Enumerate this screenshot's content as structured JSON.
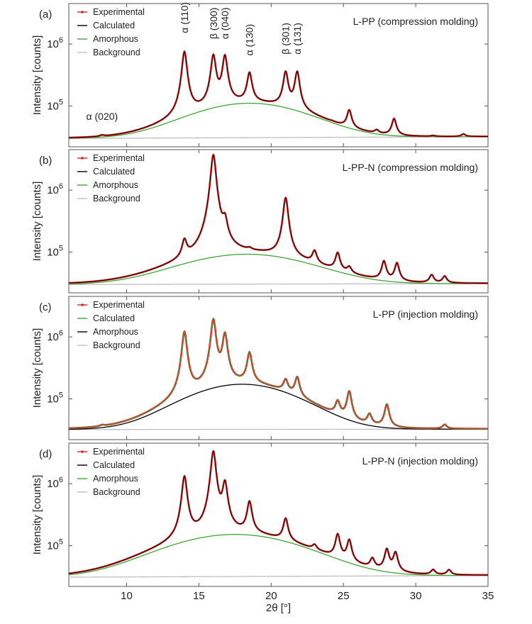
{
  "chart_data": [
    {
      "type": "line",
      "panel_letter": "(a)",
      "sample_label": "L-PP (compression molding)",
      "ylabel": "Intensity [counts]",
      "xlabel": "",
      "xlim": [
        6,
        35
      ],
      "ylim": [
        22000,
        4500000
      ],
      "yscale": "log",
      "xticks": [
        10,
        15,
        20,
        25,
        30,
        35
      ],
      "yticks": [
        {
          "value": 100000,
          "base": "10",
          "exp": "5"
        },
        {
          "value": 1000000,
          "base": "10",
          "exp": "6"
        }
      ],
      "show_xtick_labels": false,
      "legend": {
        "position": "top-left",
        "entries": [
          "Experimental",
          "Calculated",
          "Amorphous",
          "Background"
        ]
      },
      "series_colors": {
        "experimental": "#d62728",
        "calculated": "#000000",
        "amorphous": "#3fa535",
        "background": "#bfbfbf"
      },
      "background": {
        "start": 30000,
        "end": 32000
      },
      "amorphous": {
        "center": 18.5,
        "height": 80000,
        "width": 3.6
      },
      "peaks": [
        {
          "x": 8.3,
          "y": 33000
        },
        {
          "x": 14.0,
          "y": 750000
        },
        {
          "x": 16.0,
          "y": 650000
        },
        {
          "x": 16.8,
          "y": 640000
        },
        {
          "x": 18.5,
          "y": 340000
        },
        {
          "x": 21.0,
          "y": 350000
        },
        {
          "x": 21.8,
          "y": 350000
        },
        {
          "x": 24.2,
          "y": 55000
        },
        {
          "x": 25.4,
          "y": 85000
        },
        {
          "x": 26.5,
          "y": 38000
        },
        {
          "x": 27.3,
          "y": 40000
        },
        {
          "x": 28.5,
          "y": 62000
        },
        {
          "x": 31.2,
          "y": 33000
        },
        {
          "x": 33.3,
          "y": 35000
        }
      ],
      "peak_labels": [
        {
          "text": "α (020)",
          "x": 8.3,
          "y": 60000
        },
        {
          "text": "α (110)",
          "x": 14.0,
          "y": 1500000
        },
        {
          "text": "β (300)",
          "x": 16.0,
          "y": 1200000
        },
        {
          "text": "α (040)",
          "x": 16.8,
          "y": 1200000
        },
        {
          "text": "α (130)",
          "x": 18.5,
          "y": 650000
        },
        {
          "text": "β (301)",
          "x": 21.0,
          "y": 680000
        },
        {
          "text": "α (131)",
          "x": 21.8,
          "y": 680000
        }
      ]
    },
    {
      "type": "line",
      "panel_letter": "(b)",
      "sample_label": "L-PP-N (compression molding)",
      "ylabel": "Intensity [counts]",
      "xlabel": "",
      "xlim": [
        6,
        35
      ],
      "ylim": [
        22000,
        4500000
      ],
      "yscale": "log",
      "xticks": [
        10,
        15,
        20,
        25,
        30,
        35
      ],
      "yticks": [
        {
          "value": 100000,
          "base": "10",
          "exp": "5"
        },
        {
          "value": 1000000,
          "base": "10",
          "exp": "6"
        }
      ],
      "show_xtick_labels": false,
      "legend": {
        "position": "top-left",
        "entries": [
          "Experimental",
          "Calculated",
          "Amorphous",
          "Background"
        ]
      },
      "series_colors": {
        "experimental": "#d62728",
        "calculated": "#000000",
        "amorphous": "#3fa535",
        "background": "#bfbfbf"
      },
      "background": {
        "start": 30000,
        "end": 31000
      },
      "amorphous": {
        "center": 18.3,
        "height": 62000,
        "width": 4.0
      },
      "peaks": [
        {
          "x": 14.0,
          "y": 140000
        },
        {
          "x": 16.0,
          "y": 3700000
        },
        {
          "x": 16.8,
          "y": 270000
        },
        {
          "x": 18.5,
          "y": 100000
        },
        {
          "x": 21.0,
          "y": 750000
        },
        {
          "x": 23.0,
          "y": 100000
        },
        {
          "x": 24.6,
          "y": 95000
        },
        {
          "x": 25.4,
          "y": 55000
        },
        {
          "x": 27.8,
          "y": 70000
        },
        {
          "x": 28.7,
          "y": 65000
        },
        {
          "x": 31.1,
          "y": 42000
        },
        {
          "x": 32.0,
          "y": 40000
        }
      ],
      "peak_labels": []
    },
    {
      "type": "line",
      "panel_letter": "(c)",
      "sample_label": "L-PP (injection molding)",
      "ylabel": "Intensity [counts]",
      "xlabel": "",
      "xlim": [
        6,
        35
      ],
      "ylim": [
        22000,
        4500000
      ],
      "yscale": "log",
      "xticks": [
        10,
        15,
        20,
        25,
        30,
        35
      ],
      "yticks": [
        {
          "value": 100000,
          "base": "10",
          "exp": "5"
        },
        {
          "value": 1000000,
          "base": "10",
          "exp": "6"
        }
      ],
      "show_xtick_labels": false,
      "legend": {
        "position": "top-left",
        "entries": [
          "Experimental",
          "Calculated",
          "Amorphous",
          "Background"
        ]
      },
      "series_colors": {
        "experimental": "#d62728",
        "calculated": "#3fa535",
        "amorphous": "#000000",
        "background": "#bfbfbf"
      },
      "background": {
        "start": 32000,
        "end": 32500
      },
      "amorphous": {
        "center": 18.0,
        "height": 140000,
        "width": 3.4
      },
      "peaks": [
        {
          "x": 8.3,
          "y": 36000
        },
        {
          "x": 14.0,
          "y": 1200000
        },
        {
          "x": 16.0,
          "y": 1900000
        },
        {
          "x": 16.8,
          "y": 1100000
        },
        {
          "x": 18.5,
          "y": 550000
        },
        {
          "x": 21.0,
          "y": 200000
        },
        {
          "x": 21.8,
          "y": 220000
        },
        {
          "x": 24.6,
          "y": 90000
        },
        {
          "x": 25.4,
          "y": 130000
        },
        {
          "x": 26.8,
          "y": 55000
        },
        {
          "x": 28.0,
          "y": 80000
        },
        {
          "x": 32.0,
          "y": 38000
        }
      ],
      "peak_labels": []
    },
    {
      "type": "line",
      "panel_letter": "(d)",
      "sample_label": "L-PP-N (injection molding)",
      "ylabel": "Intensity [counts]",
      "xlabel": "2θ [°]",
      "xlim": [
        6,
        35
      ],
      "ylim": [
        22000,
        4500000
      ],
      "yscale": "log",
      "xticks": [
        10,
        15,
        20,
        25,
        30,
        35
      ],
      "yticks": [
        {
          "value": 100000,
          "base": "10",
          "exp": "5"
        },
        {
          "value": 1000000,
          "base": "10",
          "exp": "6"
        }
      ],
      "show_xtick_labels": true,
      "legend": {
        "position": "top-left",
        "entries": [
          "Experimental",
          "Calculated",
          "Amorphous",
          "Background"
        ]
      },
      "series_colors": {
        "experimental": "#d62728",
        "calculated": "#000000",
        "amorphous": "#3fa535",
        "background": "#bfbfbf"
      },
      "background": {
        "start": 31000,
        "end": 33000
      },
      "amorphous": {
        "center": 17.5,
        "height": 120000,
        "width": 4.2
      },
      "peaks": [
        {
          "x": 8.3,
          "y": 35000
        },
        {
          "x": 14.0,
          "y": 1300000
        },
        {
          "x": 16.0,
          "y": 3300000
        },
        {
          "x": 16.8,
          "y": 1000000
        },
        {
          "x": 18.5,
          "y": 500000
        },
        {
          "x": 21.0,
          "y": 270000
        },
        {
          "x": 23.0,
          "y": 100000
        },
        {
          "x": 24.6,
          "y": 150000
        },
        {
          "x": 25.4,
          "y": 120000
        },
        {
          "x": 27.0,
          "y": 60000
        },
        {
          "x": 28.0,
          "y": 85000
        },
        {
          "x": 28.6,
          "y": 75000
        },
        {
          "x": 31.2,
          "y": 40000
        },
        {
          "x": 32.3,
          "y": 40000
        }
      ],
      "peak_labels": []
    }
  ]
}
